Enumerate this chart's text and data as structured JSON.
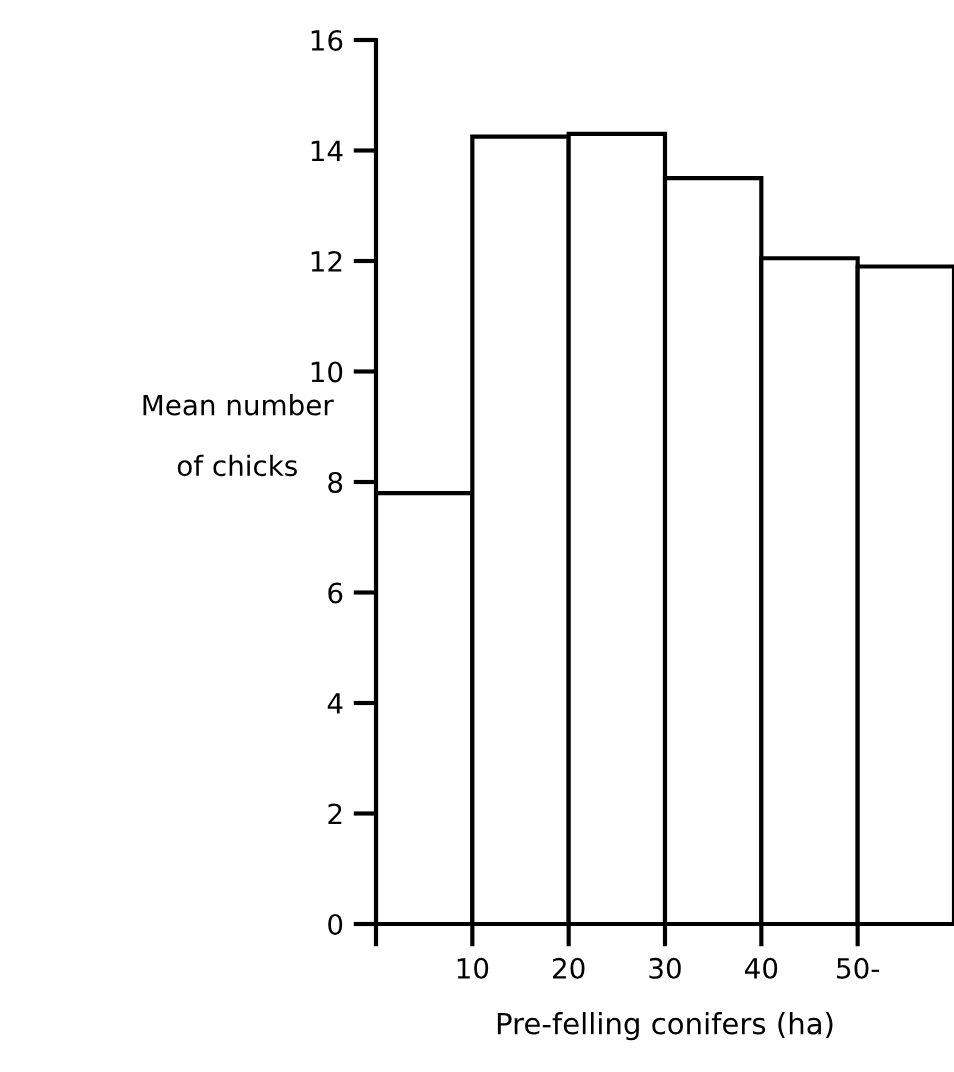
{
  "chart_data": {
    "type": "histogram",
    "xlabel": "Pre-felling conifers (ha)",
    "ylabel": "Mean number\nof chicks",
    "bins": [
      0,
      10,
      20,
      30,
      40,
      50,
      60
    ],
    "values": [
      7.8,
      14.25,
      14.3,
      13.5,
      12.05,
      11.9
    ],
    "color": "#ffffff",
    "xlim": [
      0,
      60
    ],
    "xticks": [
      {
        "value": 0,
        "label": null
      },
      10,
      20,
      30,
      40,
      {
        "value": 50,
        "label": "50-"
      }
    ],
    "ylim": [
      0,
      16
    ],
    "yticks": [
      0,
      2,
      4,
      6,
      8,
      10,
      12,
      14,
      16
    ],
    "grid": false,
    "legend": false
  }
}
